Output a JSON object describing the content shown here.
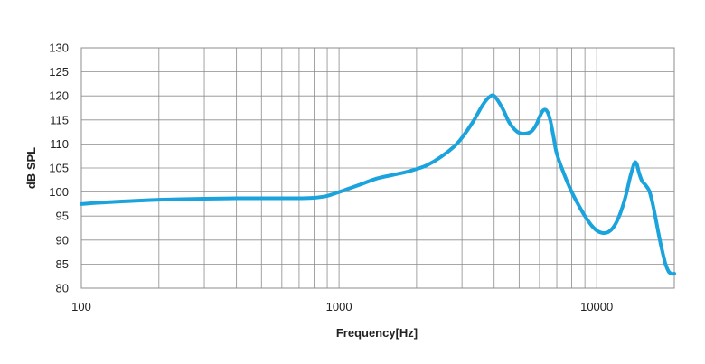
{
  "chart_data": {
    "type": "line",
    "xlabel": "Frequency[Hz]",
    "ylabel": "dB SPL",
    "x_scale": "log",
    "xlim": [
      100,
      20000
    ],
    "ylim": [
      80,
      130
    ],
    "grid": true,
    "x_ticks": [
      100,
      1000,
      10000
    ],
    "x_tick_labels": [
      "100",
      "1000",
      "10000"
    ],
    "y_ticks": [
      80,
      85,
      90,
      95,
      100,
      105,
      110,
      115,
      120,
      125,
      130
    ],
    "y_tick_labels": [
      "80",
      "85",
      "90",
      "95",
      "100",
      "105",
      "110",
      "115",
      "120",
      "125",
      "130"
    ],
    "series_color": "#1aa3dc",
    "series": [
      {
        "x": [
          100,
          120,
          150,
          200,
          300,
          400,
          500,
          600,
          700,
          800,
          900,
          1000,
          1200,
          1400,
          1600,
          1800,
          2000,
          2200,
          2500,
          2800,
          3000,
          3300,
          3600,
          3800,
          4000,
          4300,
          4600,
          5000,
          5500,
          5800,
          6000,
          6200,
          6400,
          6600,
          6800,
          7000,
          7500,
          8000,
          8500,
          9000,
          9500,
          10000,
          10500,
          11000,
          11500,
          12000,
          12500,
          13000,
          13500,
          14000,
          14300,
          14600,
          15000,
          15500,
          16000,
          16500,
          17000,
          17500,
          18000,
          18500,
          19000,
          19500,
          20000
        ],
        "y": [
          97.5,
          97.8,
          98.1,
          98.4,
          98.6,
          98.7,
          98.7,
          98.7,
          98.7,
          98.8,
          99.2,
          100.0,
          101.5,
          102.8,
          103.5,
          104.1,
          104.8,
          105.6,
          107.4,
          109.5,
          111.3,
          114.5,
          118.0,
          119.6,
          120.0,
          117.5,
          114.3,
          112.3,
          112.4,
          113.8,
          115.6,
          117.0,
          116.9,
          115.0,
          111.5,
          108.0,
          103.5,
          100.0,
          97.3,
          95.0,
          93.2,
          92.0,
          91.5,
          91.6,
          92.4,
          94.0,
          96.4,
          99.5,
          103.2,
          106.0,
          105.8,
          104.0,
          102.3,
          101.4,
          100.2,
          97.5,
          94.0,
          90.5,
          87.5,
          85.0,
          83.5,
          83.0,
          83.0
        ]
      }
    ]
  }
}
